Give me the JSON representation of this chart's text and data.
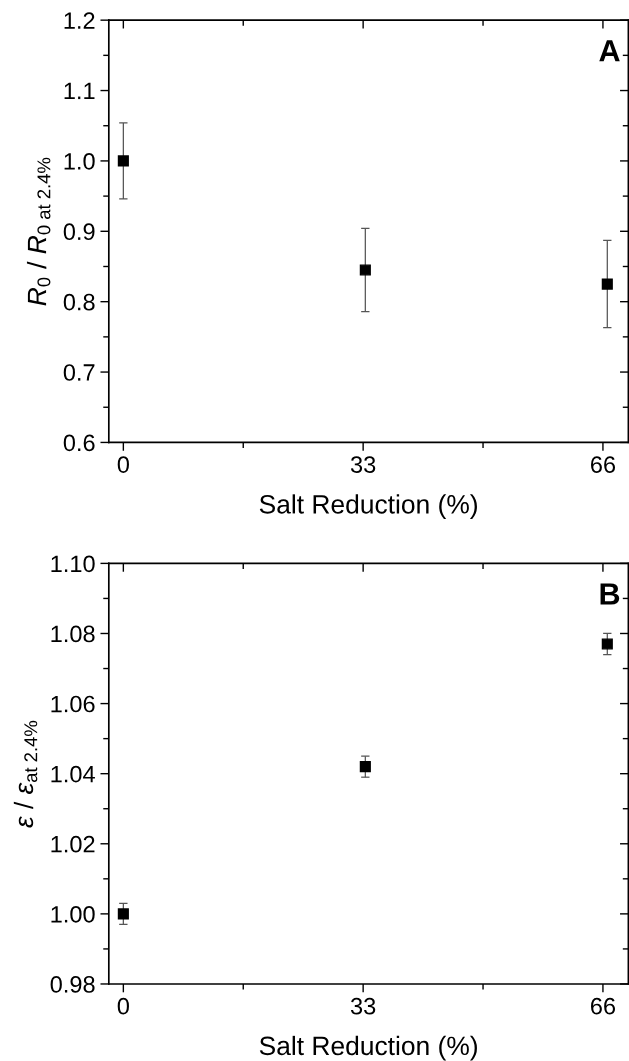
{
  "chart_data": [
    {
      "type": "scatter",
      "xlabel": "Salt Reduction (%)",
      "ylabel": "R$_{0}$ / R$_{0 at 2.4%}$",
      "annotations": [
        "A"
      ],
      "x": [
        0,
        33.3,
        66.6
      ],
      "values": [
        1.0,
        0.845,
        0.825
      ],
      "errors": [
        0.054,
        0.059,
        0.062
      ],
      "color": "#000000",
      "marker": "square",
      "xlim": [
        -2,
        69.5
      ],
      "xticks": [
        0,
        33,
        66
      ],
      "ylim": [
        0.6,
        1.2
      ],
      "yticks": [
        {
          "value": 0.6,
          "label": "0.6"
        },
        {
          "value": 0.7,
          "label": "0.7"
        },
        {
          "value": 0.8,
          "label": "0.8"
        },
        {
          "value": 0.9,
          "label": "0.9"
        },
        {
          "value": 1.0,
          "label": "1.0"
        },
        {
          "value": 1.1,
          "label": "1.1"
        },
        {
          "value": 1.2,
          "label": "1.2"
        }
      ],
      "grid": false,
      "legend": false
    },
    {
      "type": "scatter",
      "xlabel": "Salt Reduction (%)",
      "ylabel": "ε / ε$_{at 2.4%}$",
      "annotations": [
        "B"
      ],
      "x": [
        0,
        33.3,
        66.6
      ],
      "values": [
        1.0,
        1.042,
        1.077
      ],
      "errors": [
        0.003,
        0.003,
        0.003
      ],
      "color": "#000000",
      "marker": "square",
      "xlim": [
        -2,
        69.5
      ],
      "xticks": [
        0,
        33,
        66
      ],
      "ylim": [
        0.98,
        1.1
      ],
      "yticks": [
        {
          "value": 0.98,
          "label": "0.98"
        },
        {
          "value": 1.0,
          "label": "1.00"
        },
        {
          "value": 1.02,
          "label": "1.02"
        },
        {
          "value": 1.04,
          "label": "1.04"
        },
        {
          "value": 1.06,
          "label": "1.06"
        },
        {
          "value": 1.08,
          "label": "1.08"
        },
        {
          "value": 1.1,
          "label": "1.10"
        }
      ],
      "grid": false,
      "legend": false
    }
  ]
}
